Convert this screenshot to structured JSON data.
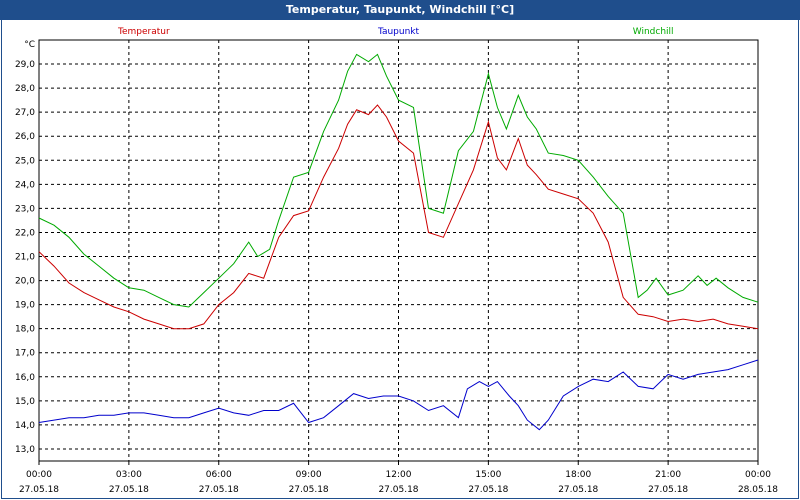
{
  "title": "Temperatur, Taupunkt, Windchill [°C]",
  "chart_data": {
    "type": "line",
    "title": "Temperatur, Taupunkt, Windchill [°C]",
    "ylabel": "°C",
    "ylim": [
      12.5,
      30.0
    ],
    "yticks": [
      "13,0",
      "14,0",
      "15,0",
      "16,0",
      "17,0",
      "18,0",
      "19,0",
      "20,0",
      "21,0",
      "22,0",
      "23,0",
      "24,0",
      "25,0",
      "26,0",
      "27,0",
      "28,0",
      "29,0"
    ],
    "xlim": [
      0,
      24
    ],
    "xticks": [
      {
        "time": "00:00",
        "date": "27.05.18"
      },
      {
        "time": "03:00",
        "date": "27.05.18"
      },
      {
        "time": "06:00",
        "date": "27.05.18"
      },
      {
        "time": "09:00",
        "date": "27.05.18"
      },
      {
        "time": "12:00",
        "date": "27.05.18"
      },
      {
        "time": "15:00",
        "date": "27.05.18"
      },
      {
        "time": "18:00",
        "date": "27.05.18"
      },
      {
        "time": "21:00",
        "date": "27.05.18"
      },
      {
        "time": "00:00",
        "date": "28.05.18"
      }
    ],
    "series": [
      {
        "name": "Temperatur",
        "color": "#cc0000",
        "x": [
          0,
          0.5,
          1,
          1.5,
          2,
          2.5,
          3,
          3.5,
          4,
          4.5,
          5,
          5.5,
          6,
          6.5,
          7,
          7.5,
          8,
          8.5,
          9,
          9.5,
          10,
          10.3,
          10.6,
          11,
          11.3,
          11.6,
          12,
          12.5,
          13,
          13.5,
          14,
          14.5,
          15,
          15.3,
          15.6,
          16,
          16.3,
          16.6,
          17,
          17.5,
          18,
          18.5,
          19,
          19.5,
          20,
          20.5,
          21,
          21.5,
          22,
          22.5,
          23,
          23.5,
          24
        ],
        "values": [
          21.2,
          20.6,
          19.9,
          19.5,
          19.2,
          18.9,
          18.7,
          18.4,
          18.2,
          18.0,
          18.0,
          18.2,
          19.0,
          19.5,
          20.3,
          20.1,
          21.8,
          22.7,
          22.9,
          24.3,
          25.5,
          26.5,
          27.1,
          26.9,
          27.3,
          26.8,
          25.8,
          25.3,
          22.0,
          21.8,
          23.2,
          24.6,
          26.6,
          25.1,
          24.6,
          25.9,
          24.8,
          24.4,
          23.8,
          23.6,
          23.4,
          22.8,
          21.6,
          19.3,
          18.6,
          18.5,
          18.3,
          18.4,
          18.3,
          18.4,
          18.2,
          18.1,
          18.0
        ]
      },
      {
        "name": "Taupunkt",
        "color": "#0000cc",
        "x": [
          0,
          0.5,
          1,
          1.5,
          2,
          2.5,
          3,
          3.5,
          4,
          4.5,
          5,
          5.5,
          6,
          6.5,
          7,
          7.5,
          8,
          8.5,
          9,
          9.5,
          10,
          10.5,
          11,
          11.5,
          12,
          12.5,
          13,
          13.5,
          14,
          14.3,
          14.7,
          15,
          15.3,
          15.7,
          16,
          16.3,
          16.7,
          17,
          17.5,
          18,
          18.5,
          19,
          19.5,
          20,
          20.5,
          21,
          21.5,
          22,
          22.5,
          23,
          23.5,
          24
        ],
        "values": [
          14.1,
          14.2,
          14.3,
          14.3,
          14.4,
          14.4,
          14.5,
          14.5,
          14.4,
          14.3,
          14.3,
          14.5,
          14.7,
          14.5,
          14.4,
          14.6,
          14.6,
          14.9,
          14.1,
          14.3,
          14.8,
          15.3,
          15.1,
          15.2,
          15.2,
          15.0,
          14.6,
          14.8,
          14.3,
          15.5,
          15.8,
          15.6,
          15.8,
          15.2,
          14.8,
          14.2,
          13.8,
          14.2,
          15.2,
          15.6,
          15.9,
          15.8,
          16.2,
          15.6,
          15.5,
          16.1,
          15.9,
          16.1,
          16.2,
          16.3,
          16.5,
          16.7
        ]
      },
      {
        "name": "Windchill",
        "color": "#00aa00",
        "x": [
          0,
          0.5,
          1,
          1.5,
          2,
          2.5,
          3,
          3.5,
          4,
          4.5,
          5,
          5.5,
          6,
          6.5,
          7,
          7.3,
          7.7,
          8,
          8.5,
          9,
          9.5,
          10,
          10.3,
          10.6,
          11,
          11.3,
          11.6,
          12,
          12.5,
          13,
          13.5,
          14,
          14.5,
          15,
          15.3,
          15.6,
          16,
          16.3,
          16.6,
          17,
          17.5,
          18,
          18.5,
          19,
          19.5,
          20,
          20.3,
          20.6,
          21,
          21.5,
          22,
          22.3,
          22.6,
          23,
          23.5,
          24
        ],
        "values": [
          22.6,
          22.3,
          21.8,
          21.1,
          20.6,
          20.1,
          19.7,
          19.6,
          19.3,
          19.0,
          18.9,
          19.5,
          20.1,
          20.7,
          21.6,
          21.0,
          21.3,
          22.5,
          24.3,
          24.5,
          26.2,
          27.5,
          28.7,
          29.4,
          29.1,
          29.4,
          28.5,
          27.5,
          27.2,
          23.0,
          22.8,
          25.4,
          26.2,
          28.6,
          27.2,
          26.3,
          27.7,
          26.8,
          26.3,
          25.3,
          25.2,
          25.0,
          24.3,
          23.5,
          22.8,
          19.3,
          19.6,
          20.1,
          19.4,
          19.6,
          20.2,
          19.8,
          20.1,
          19.7,
          19.3,
          19.1
        ]
      }
    ]
  }
}
